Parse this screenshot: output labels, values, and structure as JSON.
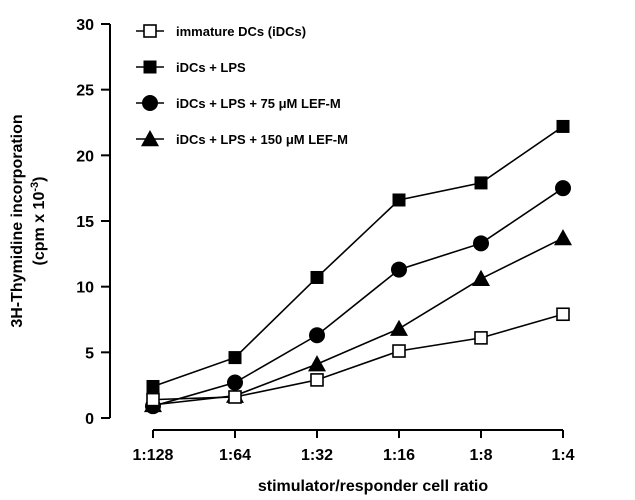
{
  "chart_data": {
    "type": "line",
    "xlabel": "stimulator/responder cell ratio",
    "ylabel_line1": "3H-Thymidine incorporation",
    "ylabel_line2_prefix": "(cpm x 10",
    "ylabel_line2_exponent": "-3",
    "ylabel_line2_suffix": ")",
    "categories": [
      "1:128",
      "1:64",
      "1:32",
      "1:16",
      "1:8",
      "1:4"
    ],
    "ylim": [
      0,
      30
    ],
    "yticks": [
      0,
      5,
      10,
      15,
      20,
      25,
      30
    ],
    "grid": false,
    "legend_position": "top-left",
    "series": [
      {
        "name": "immature DCs (iDCs)",
        "marker": "square-open",
        "values": [
          1.4,
          1.6,
          2.9,
          5.1,
          6.1,
          7.9
        ]
      },
      {
        "name": "iDCs + LPS",
        "marker": "square-filled",
        "values": [
          2.4,
          4.6,
          10.7,
          16.6,
          17.9,
          22.2
        ]
      },
      {
        "name": "iDCs + LPS + 75 μM LEF-M",
        "marker": "circle-filled",
        "values": [
          0.9,
          2.7,
          6.3,
          11.3,
          13.3,
          17.5
        ]
      },
      {
        "name": "iDCs + LPS + 150 μM LEF-M",
        "marker": "triangle-filled",
        "values": [
          1.0,
          1.7,
          4.1,
          6.8,
          10.6,
          13.7
        ]
      }
    ]
  }
}
